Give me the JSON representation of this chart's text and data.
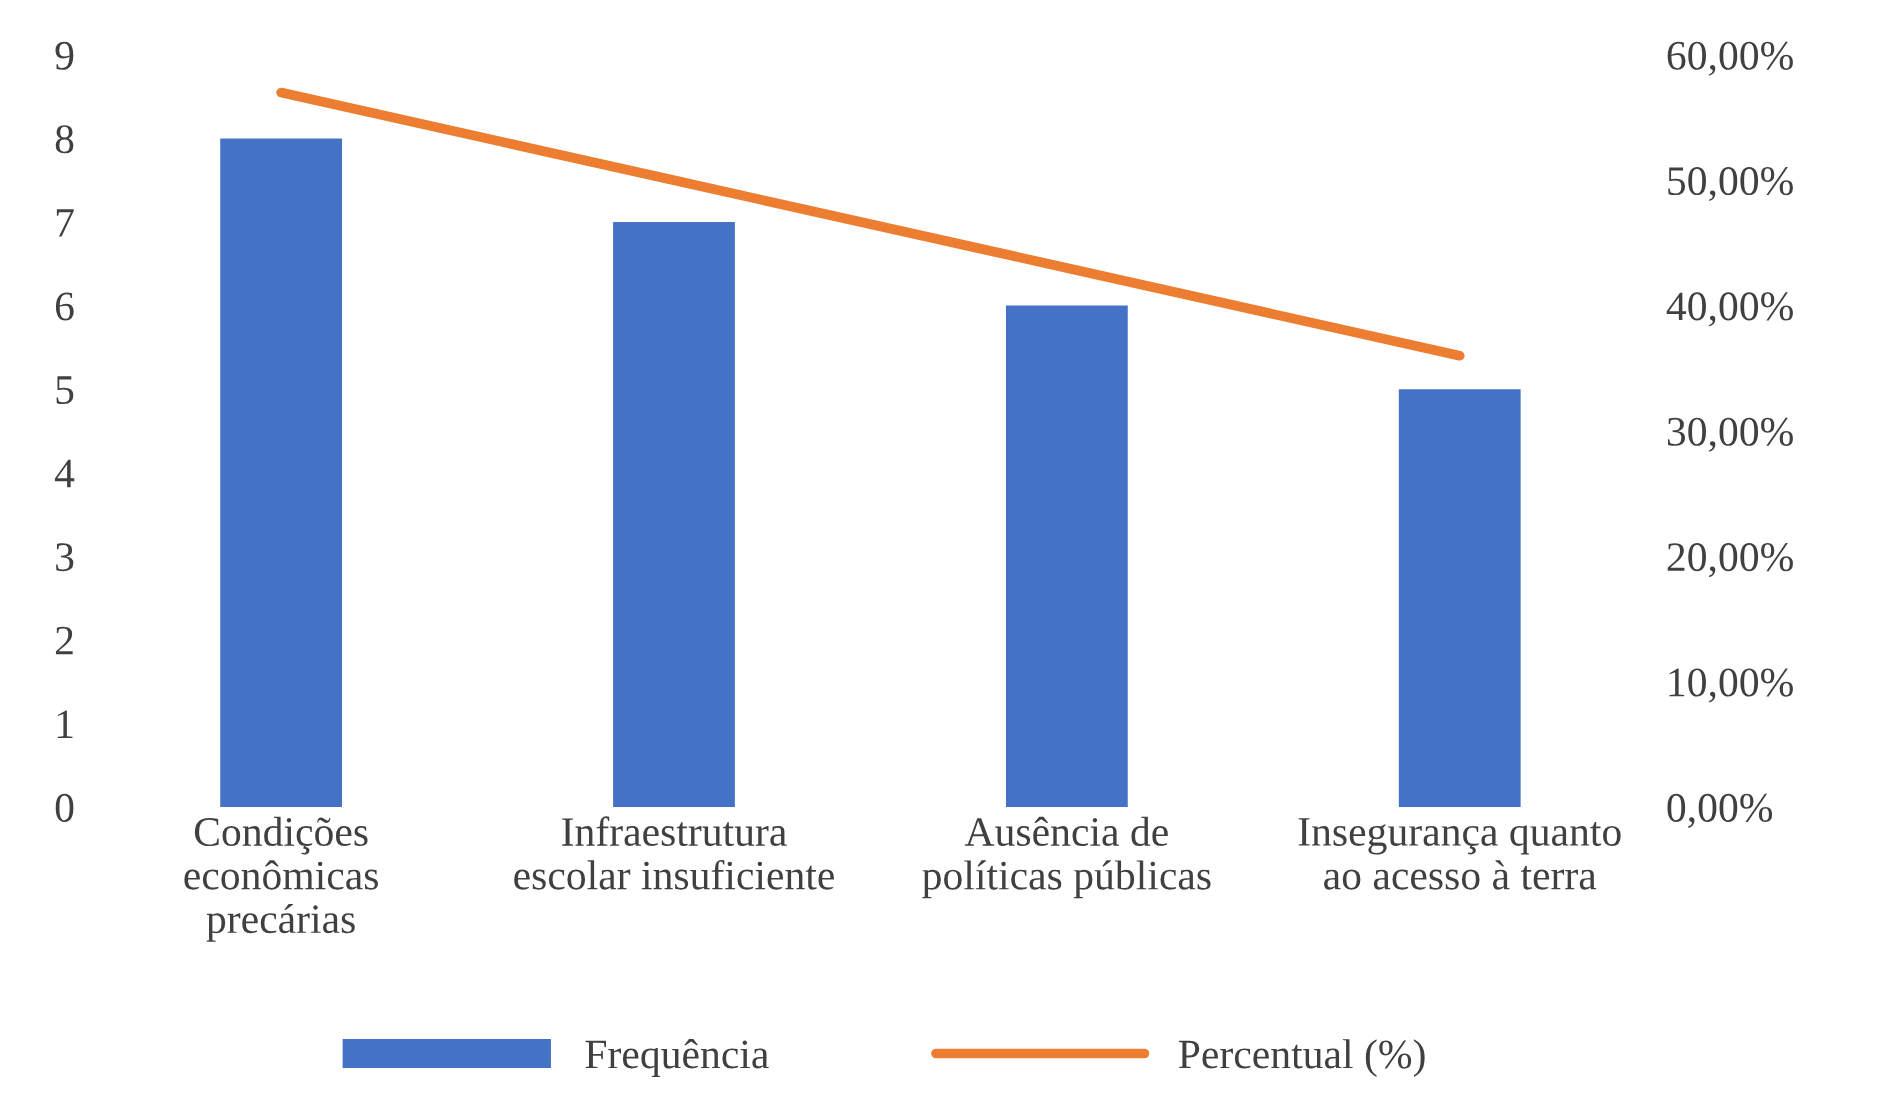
{
  "chart_data": {
    "type": "bar",
    "categories": [
      "Condições\neconômicas\nprecárias",
      "Infraestrutura\nescolar insuficiente",
      "Ausência de\npolíticas públicas",
      "Insegurança quanto\nao acesso à terra"
    ],
    "series": [
      {
        "name": "Frequência",
        "color": "#4472c4",
        "values": [
          8,
          7,
          6,
          5
        ]
      },
      {
        "name": "Percentual (%)",
        "type": "line",
        "axis": "y2",
        "color": "#ed7d31",
        "values": [
          57,
          50,
          43,
          36
        ]
      }
    ],
    "ylim": [
      0,
      9
    ],
    "yticks": [
      0,
      1,
      2,
      3,
      4,
      5,
      6,
      7,
      8,
      9
    ],
    "y2lim": [
      0,
      60
    ],
    "y2ticks": [
      {
        "value": 0,
        "label": "0,00%"
      },
      {
        "value": 10,
        "label": "10,00%"
      },
      {
        "value": 20,
        "label": "20,00%"
      },
      {
        "value": 30,
        "label": "30,00%"
      },
      {
        "value": 40,
        "label": "40,00%"
      },
      {
        "value": 50,
        "label": "50,00%"
      },
      {
        "value": 60,
        "label": "60,00%"
      }
    ],
    "grid": false,
    "legend": "bottom"
  }
}
